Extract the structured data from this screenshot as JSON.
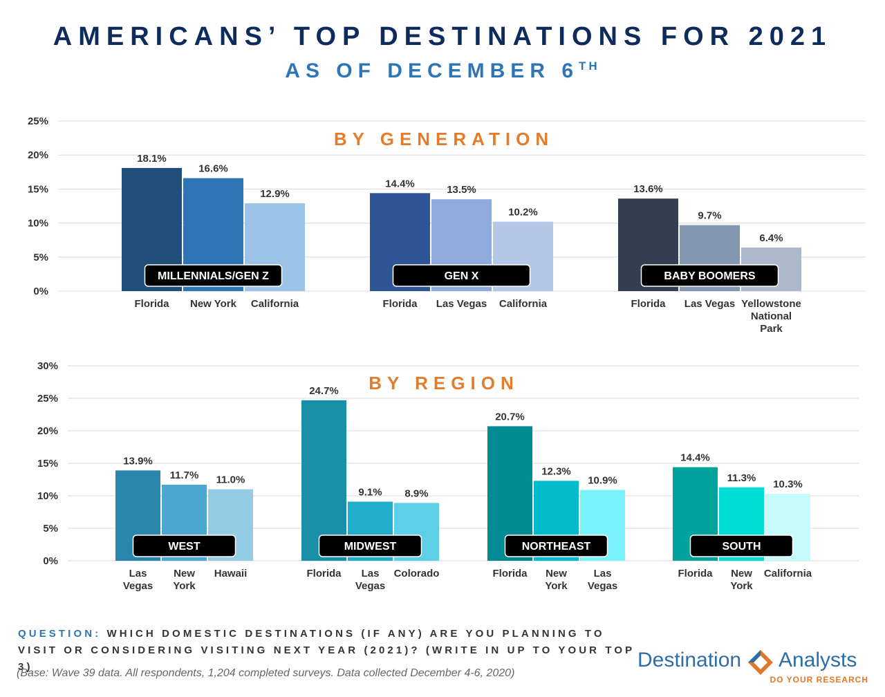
{
  "header": {
    "title": "AMERICANS’ TOP DESTINATIONS FOR 2021",
    "subtitle": "AS OF DECEMBER 6",
    "subtitle_sup": "TH"
  },
  "colors": {
    "section_title": "#e57c2c",
    "axis_text": "#333333",
    "grid": "#d9d9d9",
    "badge_bg": "#000000",
    "badge_text": "#ffffff"
  },
  "chart_data": [
    {
      "type": "bar",
      "title": "BY GENERATION",
      "ylim": [
        0,
        25
      ],
      "y_ticks": [
        "0%",
        "5%",
        "10%",
        "15%",
        "20%",
        "25%"
      ],
      "y_tick_values": [
        0,
        5,
        10,
        15,
        20,
        25
      ],
      "groups": [
        {
          "name": "MILLENNIALS/GEN Z",
          "bars": [
            {
              "label": [
                "Florida"
              ],
              "value": 18.1,
              "value_label": "18.1%",
              "color": "#1f4e79"
            },
            {
              "label": [
                "New York"
              ],
              "value": 16.6,
              "value_label": "16.6%",
              "color": "#2e75b6"
            },
            {
              "label": [
                "California"
              ],
              "value": 12.9,
              "value_label": "12.9%",
              "color": "#9dc3e6"
            }
          ]
        },
        {
          "name": "GEN X",
          "bars": [
            {
              "label": [
                "Florida"
              ],
              "value": 14.4,
              "value_label": "14.4%",
              "color": "#2f5597"
            },
            {
              "label": [
                "Las Vegas"
              ],
              "value": 13.5,
              "value_label": "13.5%",
              "color": "#8faadc"
            },
            {
              "label": [
                "California"
              ],
              "value": 10.2,
              "value_label": "10.2%",
              "color": "#b4c7e7"
            }
          ]
        },
        {
          "name": "BABY BOOMERS",
          "bars": [
            {
              "label": [
                "Florida"
              ],
              "value": 13.6,
              "value_label": "13.6%",
              "color": "#333f50"
            },
            {
              "label": [
                "Las Vegas"
              ],
              "value": 9.7,
              "value_label": "9.7%",
              "color": "#8497b0"
            },
            {
              "label": [
                "Yellowstone",
                "National",
                "Park"
              ],
              "value": 6.4,
              "value_label": "6.4%",
              "color": "#adb9ca"
            }
          ]
        }
      ]
    },
    {
      "type": "bar",
      "title": "BY REGION",
      "ylim": [
        0,
        30
      ],
      "y_ticks": [
        "0%",
        "5%",
        "10%",
        "15%",
        "20%",
        "25%",
        "30%"
      ],
      "y_tick_values": [
        0,
        5,
        10,
        15,
        20,
        25,
        30
      ],
      "groups": [
        {
          "name": "WEST",
          "bars": [
            {
              "label": [
                "Las",
                "Vegas"
              ],
              "value": 13.9,
              "value_label": "13.9%",
              "color": "#2b86ad"
            },
            {
              "label": [
                "New",
                "York"
              ],
              "value": 11.7,
              "value_label": "11.7%",
              "color": "#4ca8d2"
            },
            {
              "label": [
                "Hawaii"
              ],
              "value": 11.0,
              "value_label": "11.0%",
              "color": "#93cce3"
            }
          ]
        },
        {
          "name": "MIDWEST",
          "bars": [
            {
              "label": [
                "Florida"
              ],
              "value": 24.7,
              "value_label": "24.7%",
              "color": "#1a90a8"
            },
            {
              "label": [
                "Las",
                "Vegas"
              ],
              "value": 9.1,
              "value_label": "9.1%",
              "color": "#20adca"
            },
            {
              "label": [
                "Colorado"
              ],
              "value": 8.9,
              "value_label": "8.9%",
              "color": "#5dcfe6"
            }
          ]
        },
        {
          "name": "NORTHEAST",
          "bars": [
            {
              "label": [
                "Florida"
              ],
              "value": 20.7,
              "value_label": "20.7%",
              "color": "#008a91"
            },
            {
              "label": [
                "New",
                "York"
              ],
              "value": 12.3,
              "value_label": "12.3%",
              "color": "#00bcca"
            },
            {
              "label": [
                "Las",
                "Vegas"
              ],
              "value": 10.9,
              "value_label": "10.9%",
              "color": "#79f2fb"
            }
          ]
        },
        {
          "name": "SOUTH",
          "bars": [
            {
              "label": [
                "Florida"
              ],
              "value": 14.4,
              "value_label": "14.4%",
              "color": "#00a39b"
            },
            {
              "label": [
                "New",
                "York"
              ],
              "value": 11.3,
              "value_label": "11.3%",
              "color": "#00dcd6"
            },
            {
              "label": [
                "California"
              ],
              "value": 10.3,
              "value_label": "10.3%",
              "color": "#c6fbfb"
            }
          ]
        }
      ]
    }
  ],
  "footer": {
    "question_label": "QUESTION:",
    "question_text": "WHICH DOMESTIC DESTINATIONS (IF ANY) ARE YOU PLANNING TO VISIT OR CONSIDERING VISITING NEXT YEAR (2021)? (WRITE IN UP TO YOUR TOP 3)",
    "base_note": "(Base: Wave 39 data. All respondents, 1,204 completed surveys. Data collected December 4-6, 2020)"
  },
  "logo": {
    "word1": "Destination",
    "word2": "Analysts",
    "tagline": "DO YOUR RESEARCH"
  }
}
